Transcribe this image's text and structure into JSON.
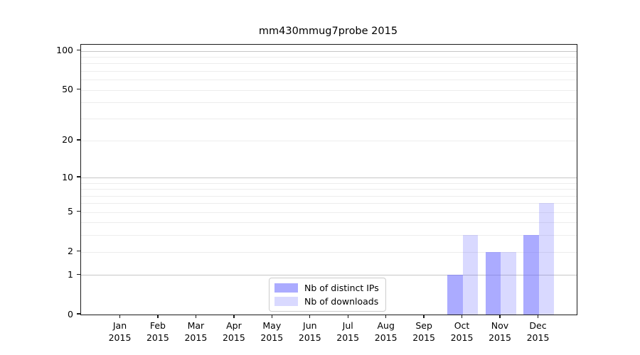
{
  "chart_data": {
    "type": "bar",
    "title": "mm430mmug7probe 2015",
    "categories": [
      "Jan 2015",
      "Feb 2015",
      "Mar 2015",
      "Apr 2015",
      "May 2015",
      "Jun 2015",
      "Jul 2015",
      "Aug 2015",
      "Sep 2015",
      "Oct 2015",
      "Nov 2015",
      "Dec 2015"
    ],
    "series": [
      {
        "name": "Nb of distinct IPs",
        "color": "rgba(102,102,255,0.55)",
        "values": [
          0,
          0,
          0,
          0,
          0,
          0,
          0,
          0,
          0,
          1,
          2,
          3
        ]
      },
      {
        "name": "Nb of downloads",
        "color": "rgba(102,102,255,0.25)",
        "values": [
          0,
          0,
          0,
          0,
          0,
          0,
          0,
          0,
          0,
          3,
          2,
          6
        ]
      }
    ],
    "yscale": "log1p",
    "ylim": [
      0,
      112
    ],
    "ytick_values": [
      0,
      1,
      2,
      5,
      10,
      20,
      50,
      100
    ],
    "ytick_labels": [
      "0",
      "1",
      "2",
      "5",
      "10",
      "20",
      "50",
      "100"
    ],
    "grid": {
      "major_values": [
        1,
        10,
        100
      ],
      "minor_values": [
        2,
        3,
        4,
        5,
        6,
        7,
        8,
        9,
        20,
        30,
        40,
        50,
        60,
        70,
        80,
        90
      ],
      "major_color": "#c6c6c6",
      "minor_color": "#ededed"
    },
    "legend_position": "lower center"
  }
}
